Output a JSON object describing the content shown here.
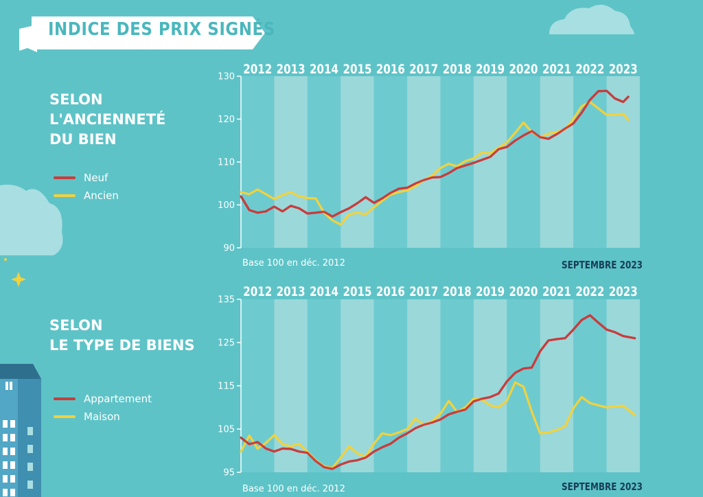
{
  "banner": {
    "title": "INDICE DES PRIX SIGNÉS"
  },
  "colors": {
    "background": "#5ec3c7",
    "band_light": "#9bd8da",
    "band_dark": "#6dcbd0",
    "line_red": "#c93c3c",
    "line_yellow": "#f2d23d",
    "title_dark": "#153e56"
  },
  "sections": [
    {
      "title_lines": [
        "SELON",
        "L'ANCIENNETÉ",
        "DU BIEN"
      ],
      "legend": [
        {
          "label": "Neuf",
          "color": "#c93c3c"
        },
        {
          "label": "Ancien",
          "color": "#f2d23d"
        }
      ]
    },
    {
      "title_lines": [
        "SELON",
        "LE TYPE DE BIENS"
      ],
      "legend": [
        {
          "label": "Appartement",
          "color": "#c93c3c"
        },
        {
          "label": "Maison",
          "color": "#f2d23d"
        }
      ]
    }
  ],
  "chart_data": [
    {
      "type": "line",
      "years": [
        "2012",
        "2013",
        "2014",
        "2015",
        "2016",
        "2017",
        "2018",
        "2019",
        "2020",
        "2021",
        "2022",
        "2023"
      ],
      "ylim": [
        90,
        130
      ],
      "yticks": [
        "90",
        "100",
        "110",
        "120",
        "130"
      ],
      "xlim": [
        2012.0,
        2024.0
      ],
      "note": "Base 100 en déc. 2012",
      "date": "SEPTEMBRE 2023",
      "series": [
        {
          "name": "Neuf",
          "color": "#c93c3c",
          "x": [
            2012.0,
            2012.25,
            2012.5,
            2012.75,
            2013.0,
            2013.25,
            2013.5,
            2013.75,
            2014.0,
            2014.25,
            2014.5,
            2014.75,
            2015.0,
            2015.25,
            2015.5,
            2015.75,
            2016.0,
            2016.25,
            2016.5,
            2016.75,
            2017.0,
            2017.25,
            2017.5,
            2017.75,
            2018.0,
            2018.25,
            2018.5,
            2018.75,
            2019.0,
            2019.25,
            2019.5,
            2019.75,
            2020.0,
            2020.25,
            2020.5,
            2020.75,
            2021.0,
            2021.25,
            2021.5,
            2021.75,
            2022.0,
            2022.25,
            2022.5,
            2022.75,
            2023.0,
            2023.25,
            2023.5,
            2023.65
          ],
          "y": [
            102.0,
            98.8,
            98.2,
            98.5,
            99.6,
            98.5,
            99.8,
            99.2,
            98.0,
            98.2,
            98.4,
            97.3,
            98.3,
            99.2,
            100.4,
            101.8,
            100.5,
            101.5,
            102.8,
            103.8,
            104.0,
            105.0,
            105.8,
            106.4,
            106.5,
            107.4,
            108.6,
            109.2,
            109.8,
            110.5,
            111.2,
            113.0,
            113.5,
            115.0,
            116.2,
            117.2,
            115.8,
            115.4,
            116.5,
            117.8,
            119.0,
            121.5,
            124.5,
            126.5,
            126.6,
            124.8,
            124.0,
            125.2
          ]
        },
        {
          "name": "Ancien",
          "color": "#f2d23d",
          "x": [
            2012.0,
            2012.25,
            2012.5,
            2012.75,
            2013.0,
            2013.25,
            2013.5,
            2013.75,
            2014.0,
            2014.25,
            2014.5,
            2014.75,
            2015.0,
            2015.25,
            2015.5,
            2015.75,
            2016.0,
            2016.25,
            2016.5,
            2016.75,
            2017.0,
            2017.25,
            2017.5,
            2017.75,
            2018.0,
            2018.25,
            2018.5,
            2018.75,
            2019.0,
            2019.25,
            2019.5,
            2019.75,
            2020.0,
            2020.25,
            2020.5,
            2020.75,
            2021.0,
            2021.25,
            2021.5,
            2021.75,
            2022.0,
            2022.25,
            2022.5,
            2022.75,
            2023.0,
            2023.25,
            2023.5,
            2023.65
          ],
          "y": [
            103.0,
            102.5,
            103.6,
            102.5,
            101.4,
            102.3,
            103.0,
            102.0,
            101.6,
            101.5,
            98.2,
            96.4,
            95.4,
            97.8,
            98.2,
            97.8,
            99.4,
            101.0,
            102.4,
            103.0,
            103.4,
            104.4,
            105.8,
            106.8,
            108.6,
            109.6,
            109.0,
            110.2,
            110.8,
            112.2,
            112.0,
            113.3,
            114.6,
            116.8,
            119.2,
            117.0,
            115.8,
            116.6,
            117.0,
            117.6,
            120.0,
            123.0,
            124.0,
            122.5,
            121.0,
            121.0,
            121.2,
            119.8
          ]
        }
      ]
    },
    {
      "type": "line",
      "years": [
        "2012",
        "2013",
        "2014",
        "2015",
        "2016",
        "2017",
        "2018",
        "2019",
        "2020",
        "2021",
        "2022",
        "2023"
      ],
      "ylim": [
        95,
        135
      ],
      "yticks": [
        "95",
        "105",
        "115",
        "125",
        "135"
      ],
      "xlim": [
        2012.0,
        2024.0
      ],
      "note": "Base 100 en déc. 2012",
      "date": "SEPTEMBRE 2023",
      "series": [
        {
          "name": "Appartement",
          "color": "#c93c3c",
          "x": [
            2012.0,
            2012.25,
            2012.5,
            2012.75,
            2013.0,
            2013.25,
            2013.5,
            2013.75,
            2014.0,
            2014.25,
            2014.5,
            2014.75,
            2015.0,
            2015.25,
            2015.5,
            2015.75,
            2016.0,
            2016.25,
            2016.5,
            2016.75,
            2017.0,
            2017.25,
            2017.5,
            2017.75,
            2018.0,
            2018.25,
            2018.5,
            2018.75,
            2019.0,
            2019.25,
            2019.5,
            2019.75,
            2020.0,
            2020.25,
            2020.5,
            2020.75,
            2021.0,
            2021.25,
            2021.5,
            2021.75,
            2022.0,
            2022.25,
            2022.5,
            2022.75,
            2023.0,
            2023.25,
            2023.5,
            2023.85
          ],
          "y": [
            103.0,
            101.5,
            102.0,
            100.5,
            99.8,
            100.5,
            100.4,
            99.8,
            99.5,
            97.6,
            96.2,
            95.8,
            96.8,
            97.5,
            97.8,
            98.4,
            99.8,
            100.8,
            101.6,
            103.0,
            104.0,
            105.2,
            106.0,
            106.5,
            107.2,
            108.4,
            109.0,
            109.5,
            111.4,
            112.0,
            112.4,
            113.2,
            116.0,
            118.0,
            119.0,
            119.2,
            123.0,
            125.5,
            125.8,
            126.0,
            128.0,
            130.2,
            131.3,
            129.6,
            128.0,
            127.4,
            126.5,
            126.0
          ]
        },
        {
          "name": "Maison",
          "color": "#f2d23d",
          "x": [
            2012.0,
            2012.25,
            2012.5,
            2012.75,
            2013.0,
            2013.25,
            2013.5,
            2013.75,
            2014.0,
            2014.25,
            2014.5,
            2014.75,
            2015.0,
            2015.25,
            2015.5,
            2015.75,
            2016.0,
            2016.25,
            2016.5,
            2016.75,
            2017.0,
            2017.25,
            2017.5,
            2017.75,
            2018.0,
            2018.25,
            2018.5,
            2018.75,
            2019.0,
            2019.25,
            2019.5,
            2019.75,
            2020.0,
            2020.25,
            2020.5,
            2020.75,
            2021.0,
            2021.25,
            2021.5,
            2021.75,
            2022.0,
            2022.25,
            2022.5,
            2022.75,
            2023.0,
            2023.25,
            2023.5,
            2023.85
          ],
          "y": [
            99.8,
            103.5,
            100.5,
            101.8,
            103.6,
            101.5,
            101.0,
            101.6,
            99.8,
            97.8,
            96.4,
            96.0,
            98.4,
            101.0,
            99.4,
            98.6,
            101.6,
            104.0,
            103.6,
            104.2,
            105.0,
            107.4,
            106.0,
            106.8,
            108.5,
            111.5,
            109.0,
            110.0,
            112.0,
            111.8,
            110.5,
            110.0,
            111.5,
            115.8,
            114.8,
            109.0,
            104.0,
            104.2,
            104.8,
            105.6,
            109.8,
            112.4,
            111.0,
            110.5,
            110.0,
            110.2,
            110.4,
            108.2
          ]
        }
      ]
    }
  ]
}
